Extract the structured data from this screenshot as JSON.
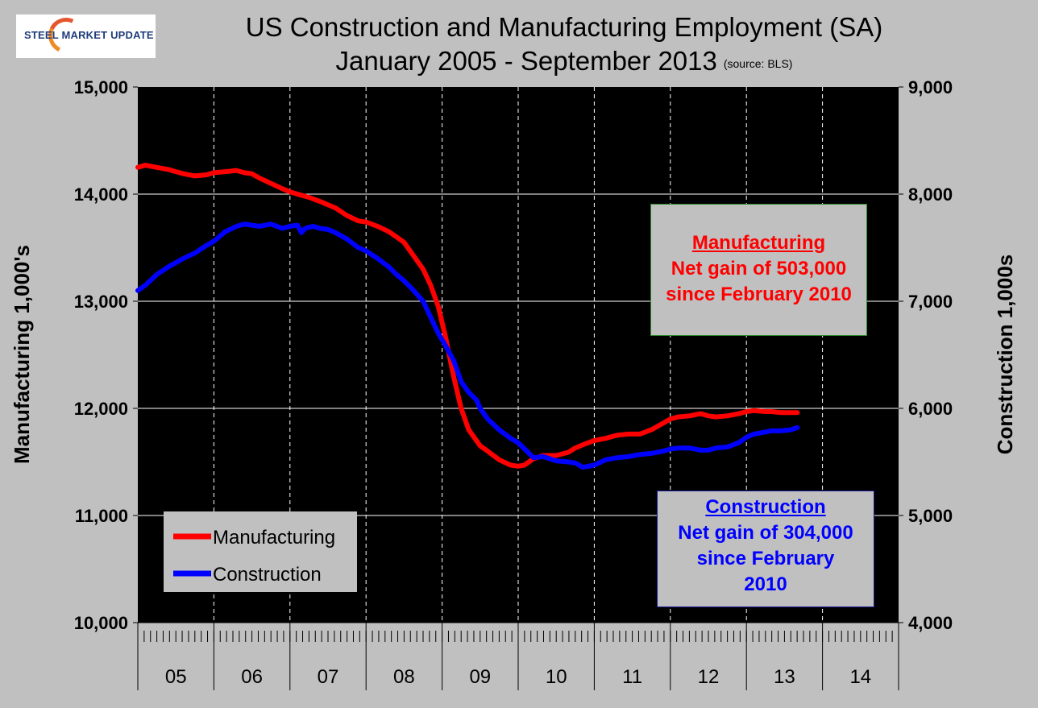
{
  "logo": {
    "text": "STEEL MARKET UPDATE"
  },
  "title": "US Construction and Manufacturing Employment (SA)",
  "subtitle": "January 2005 - September 2013",
  "source": "(source: BLS)",
  "colors": {
    "manufacturing": "#ff0000",
    "construction": "#0000ff",
    "plot_bg": "#000000",
    "page_bg": "#c0c0c0"
  },
  "annotations": {
    "manufacturing": {
      "heading": "Manufacturing",
      "line1": "Net gain of 503,000",
      "line2": "since February 2010"
    },
    "construction": {
      "heading": "Construction",
      "line1": "Net gain of 304,000",
      "line2": "since February",
      "line3": "2010"
    }
  },
  "chart_data": {
    "type": "line",
    "title": "US Construction and Manufacturing Employment (SA)",
    "subtitle": "January 2005 - September 2013",
    "ylabel": "Manufacturing  1,000's",
    "y2label": "Construction 1,000s",
    "ylim": [
      10000,
      15000
    ],
    "y2lim": [
      4000,
      9000
    ],
    "xlim": [
      2005.0,
      2015.0
    ],
    "yticks": [
      "10,000",
      "11,000",
      "12,000",
      "13,000",
      "14,000",
      "15,000"
    ],
    "y2ticks": [
      "4,000",
      "5,000",
      "6,000",
      "7,000",
      "8,000",
      "9,000"
    ],
    "xticklabels": [
      "05",
      "06",
      "07",
      "08",
      "09",
      "10",
      "11",
      "12",
      "13",
      "14"
    ],
    "legend": [
      "Manufacturing",
      "Construction"
    ],
    "series": [
      {
        "name": "Manufacturing",
        "axis": "left",
        "x": [
          2005.0,
          2005.1,
          2005.25,
          2005.4,
          2005.5,
          2005.6,
          2005.75,
          2005.9,
          2006.0,
          2006.15,
          2006.3,
          2006.4,
          2006.5,
          2006.6,
          2006.75,
          2006.9,
          2007.0,
          2007.1,
          2007.25,
          2007.4,
          2007.5,
          2007.6,
          2007.75,
          2007.9,
          2008.0,
          2008.15,
          2008.3,
          2008.4,
          2008.5,
          2008.6,
          2008.75,
          2008.85,
          2008.95,
          2009.05,
          2009.15,
          2009.25,
          2009.35,
          2009.45,
          2009.5,
          2009.6,
          2009.75,
          2009.9,
          2010.0,
          2010.08,
          2010.2,
          2010.33,
          2010.5,
          2010.66,
          2010.75,
          2010.85,
          2011.0,
          2011.15,
          2011.3,
          2011.45,
          2011.6,
          2011.75,
          2011.9,
          2012.0,
          2012.1,
          2012.25,
          2012.4,
          2012.5,
          2012.6,
          2012.75,
          2012.9,
          2013.0,
          2013.1,
          2013.25,
          2013.33,
          2013.45,
          2013.58,
          2013.67
        ],
        "values": [
          14250,
          14270,
          14250,
          14230,
          14210,
          14190,
          14170,
          14180,
          14200,
          14210,
          14220,
          14200,
          14190,
          14150,
          14100,
          14050,
          14020,
          14000,
          13970,
          13930,
          13900,
          13870,
          13800,
          13750,
          13740,
          13700,
          13650,
          13600,
          13550,
          13450,
          13300,
          13150,
          12950,
          12650,
          12300,
          12000,
          11800,
          11700,
          11650,
          11600,
          11520,
          11470,
          11460,
          11470,
          11530,
          11560,
          11560,
          11590,
          11630,
          11660,
          11700,
          11720,
          11750,
          11760,
          11760,
          11800,
          11860,
          11900,
          11920,
          11930,
          11950,
          11930,
          11920,
          11930,
          11950,
          11970,
          11980,
          11970,
          11970,
          11960,
          11960,
          11960
        ]
      },
      {
        "name": "Construction",
        "axis": "right",
        "x": [
          2005.0,
          2005.1,
          2005.25,
          2005.4,
          2005.5,
          2005.6,
          2005.75,
          2005.9,
          2006.0,
          2006.15,
          2006.3,
          2006.4,
          2006.5,
          2006.6,
          2006.75,
          2006.9,
          2007.0,
          2007.1,
          2007.15,
          2007.2,
          2007.3,
          2007.4,
          2007.5,
          2007.6,
          2007.75,
          2007.9,
          2008.0,
          2008.15,
          2008.3,
          2008.4,
          2008.5,
          2008.6,
          2008.75,
          2008.85,
          2008.95,
          2009.05,
          2009.15,
          2009.25,
          2009.35,
          2009.45,
          2009.5,
          2009.6,
          2009.75,
          2009.9,
          2010.0,
          2010.1,
          2010.2,
          2010.33,
          2010.5,
          2010.66,
          2010.75,
          2010.85,
          2011.0,
          2011.15,
          2011.3,
          2011.45,
          2011.6,
          2011.75,
          2011.9,
          2012.0,
          2012.1,
          2012.25,
          2012.4,
          2012.5,
          2012.6,
          2012.75,
          2012.9,
          2013.0,
          2013.1,
          2013.25,
          2013.33,
          2013.45,
          2013.58,
          2013.67
        ],
        "values": [
          7100,
          7150,
          7250,
          7320,
          7360,
          7400,
          7450,
          7520,
          7560,
          7650,
          7700,
          7720,
          7710,
          7700,
          7720,
          7680,
          7700,
          7710,
          7640,
          7680,
          7700,
          7680,
          7670,
          7640,
          7580,
          7500,
          7470,
          7400,
          7320,
          7250,
          7190,
          7120,
          7000,
          6850,
          6700,
          6580,
          6450,
          6250,
          6150,
          6080,
          6000,
          5900,
          5800,
          5720,
          5680,
          5610,
          5540,
          5550,
          5510,
          5500,
          5490,
          5450,
          5470,
          5520,
          5540,
          5550,
          5570,
          5580,
          5600,
          5620,
          5630,
          5630,
          5610,
          5610,
          5630,
          5640,
          5680,
          5730,
          5760,
          5780,
          5790,
          5790,
          5800,
          5820
        ]
      }
    ]
  }
}
